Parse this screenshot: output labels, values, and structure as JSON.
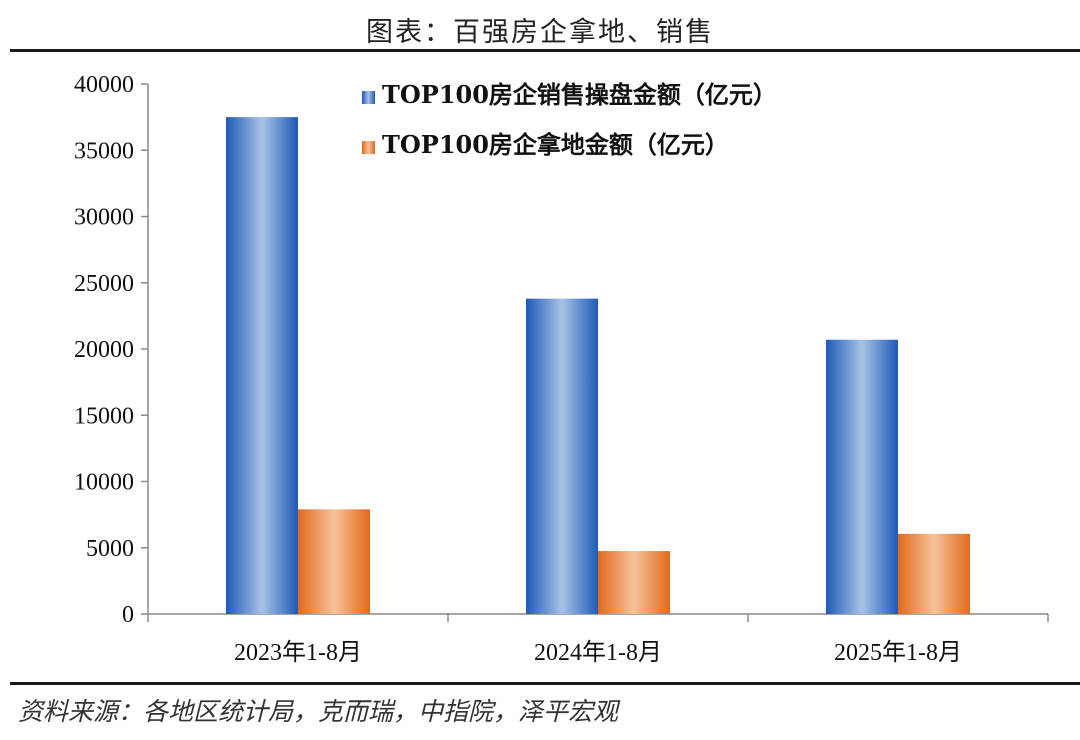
{
  "page": {
    "title": "图表：百强房企拿地、销售",
    "source": "资料来源：各地区统计局，克而瑞，中指院，泽平宏观"
  },
  "chart_data": {
    "type": "bar",
    "categories": [
      "2023年1-8月",
      "2024年1-8月",
      "2025年1-8月"
    ],
    "series": [
      {
        "name": "TOP100房企销售操盘金额（亿元）",
        "values": [
          37500,
          23800,
          20700
        ],
        "color": "#2e6fcc"
      },
      {
        "name": "TOP100房企拿地金额（亿元）",
        "values": [
          7900,
          4750,
          6050
        ],
        "color": "#ec7a2c"
      }
    ],
    "ylim": [
      0,
      40000
    ],
    "yticks": [
      0,
      5000,
      10000,
      15000,
      20000,
      25000,
      30000,
      35000,
      40000
    ],
    "grid": false,
    "legend_position": "top-center"
  }
}
